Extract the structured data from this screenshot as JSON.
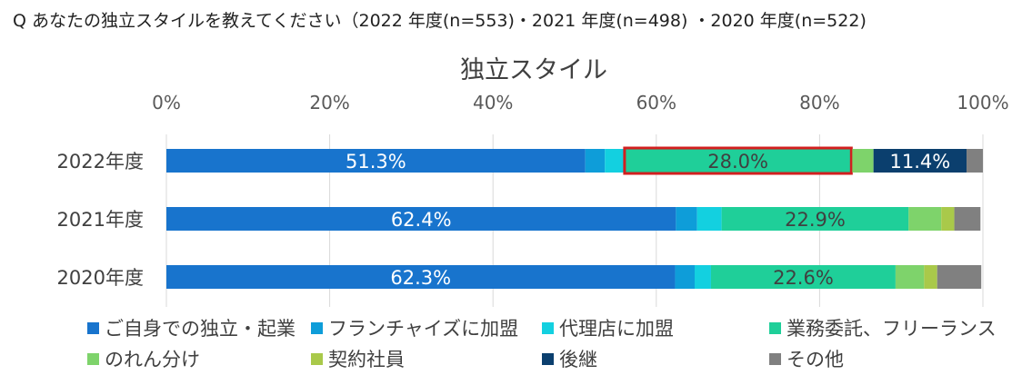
{
  "question": "Q あなたの独立スタイルを教えてください（2022 年度(n=553)・2021 年度(n=498) ・2020 年度(n=522)",
  "chart_data": {
    "type": "bar",
    "orientation": "horizontal",
    "stacked": "percent",
    "title": "独立スタイル",
    "x_tick_labels": [
      "0%",
      "20%",
      "40%",
      "60%",
      "80%",
      "100%"
    ],
    "xlim": [
      0,
      100
    ],
    "grid": true,
    "legend_position": "bottom",
    "categories": [
      "2022年度",
      "2021年度",
      "2020年度"
    ],
    "series": [
      {
        "name": "ご自身での独立・起業",
        "color": "#1874CD",
        "values": [
          51.3,
          62.4,
          62.3
        ],
        "labels": [
          "51.3%",
          "62.4%",
          "62.3%"
        ],
        "label_color": "#ffffff"
      },
      {
        "name": "フランチャイズに加盟",
        "color": "#0E9DD9",
        "values": [
          2.4,
          2.6,
          2.4
        ],
        "labels": [
          "",
          "",
          ""
        ],
        "label_color": "#ffffff"
      },
      {
        "name": "代理店に加盟",
        "color": "#13D0E0",
        "values": [
          2.3,
          3.0,
          2.0
        ],
        "labels": [
          "",
          "",
          ""
        ],
        "label_color": "#ffffff"
      },
      {
        "name": "業務委託、フリーランス",
        "color": "#1FCF99",
        "values": [
          28.0,
          22.9,
          22.6
        ],
        "labels": [
          "28.0%",
          "22.9%",
          "22.6%"
        ],
        "label_color": "#404040"
      },
      {
        "name": "のれん分け",
        "color": "#7ED36B",
        "values": [
          2.6,
          4.0,
          3.5
        ],
        "labels": [
          "",
          "",
          ""
        ],
        "label_color": "#404040"
      },
      {
        "name": "契約社員",
        "color": "#A9C94A",
        "values": [
          0.0,
          1.6,
          1.6
        ],
        "labels": [
          "",
          "",
          ""
        ],
        "label_color": "#404040"
      },
      {
        "name": "後継",
        "color": "#0B3F6E",
        "values": [
          11.4,
          0.0,
          0.0
        ],
        "labels": [
          "11.4%",
          "",
          ""
        ],
        "label_color": "#ffffff"
      },
      {
        "name": "その他",
        "color": "#808080",
        "values": [
          2.0,
          3.2,
          5.4
        ],
        "labels": [
          "",
          "",
          ""
        ],
        "label_color": "#ffffff"
      }
    ],
    "highlight": {
      "category": "2022年度",
      "series": "業務委託、フリーランス",
      "color": "#D21F1F"
    }
  }
}
